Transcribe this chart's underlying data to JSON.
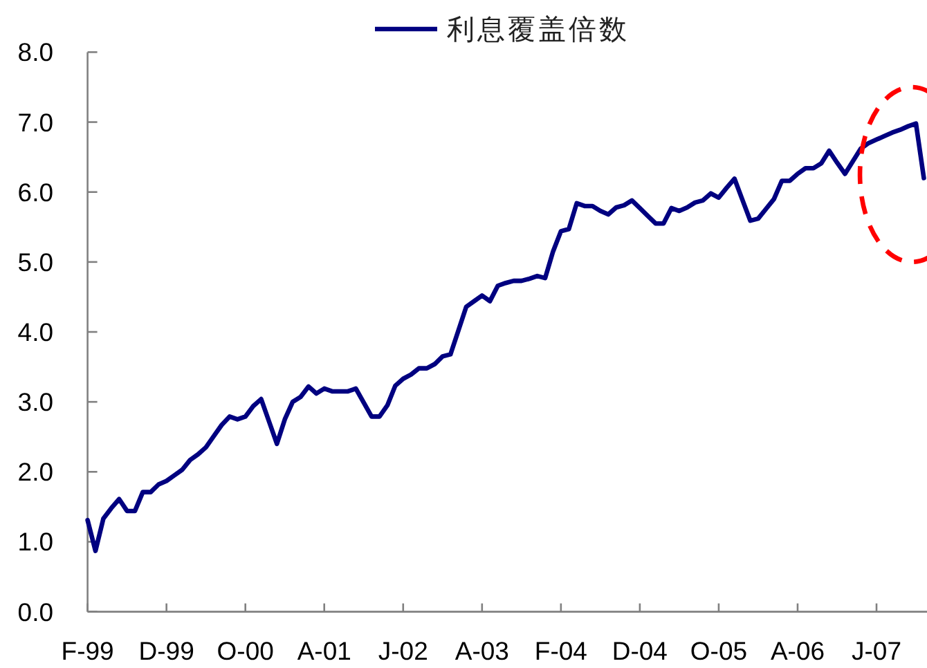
{
  "chart_data": {
    "type": "line",
    "categories": [
      "F-99",
      null,
      null,
      null,
      null,
      null,
      null,
      null,
      null,
      null,
      "D-99",
      null,
      null,
      null,
      null,
      null,
      null,
      null,
      null,
      null,
      "O-00",
      null,
      null,
      null,
      null,
      null,
      null,
      null,
      null,
      null,
      "A-01",
      null,
      null,
      null,
      null,
      null,
      null,
      null,
      null,
      null,
      "J-02",
      null,
      null,
      null,
      null,
      null,
      null,
      null,
      null,
      null,
      "A-03",
      null,
      null,
      null,
      null,
      null,
      null,
      null,
      null,
      null,
      "F-04",
      null,
      null,
      null,
      null,
      null,
      null,
      null,
      null,
      null,
      "D-04",
      null,
      null,
      null,
      null,
      null,
      null,
      null,
      null,
      null,
      "O-05",
      null,
      null,
      null,
      null,
      null,
      null,
      null,
      null,
      null,
      "A-06",
      null,
      null,
      null,
      null,
      null,
      null,
      null,
      null,
      null,
      "J-07",
      null,
      null,
      null,
      null,
      null,
      null
    ],
    "series": [
      {
        "name": "利息覆盖倍数",
        "color": "#000080",
        "values": [
          1.31,
          0.87,
          1.33,
          1.48,
          1.61,
          1.44,
          1.44,
          1.71,
          1.71,
          1.82,
          1.87,
          1.95,
          2.03,
          2.17,
          2.25,
          2.35,
          2.51,
          2.67,
          2.79,
          2.75,
          2.79,
          2.94,
          3.04,
          2.72,
          2.4,
          2.75,
          3.0,
          3.07,
          3.22,
          3.12,
          3.19,
          3.15,
          3.15,
          3.15,
          3.19,
          2.99,
          2.79,
          2.79,
          2.95,
          3.23,
          3.33,
          3.39,
          3.48,
          3.48,
          3.54,
          3.65,
          3.68,
          4.02,
          4.36,
          4.44,
          4.52,
          4.44,
          4.66,
          4.7,
          4.73,
          4.73,
          4.76,
          4.8,
          4.77,
          5.15,
          5.44,
          5.47,
          5.84,
          5.8,
          5.8,
          5.73,
          5.68,
          5.78,
          5.81,
          5.88,
          5.77,
          5.66,
          5.55,
          5.55,
          5.77,
          5.73,
          5.78,
          5.85,
          5.88,
          5.98,
          5.92,
          6.06,
          6.19,
          5.89,
          5.59,
          5.62,
          5.76,
          5.9,
          6.16,
          6.16,
          6.26,
          6.34,
          6.34,
          6.41,
          6.59,
          6.42,
          6.26,
          6.44,
          6.62,
          6.7,
          6.75,
          6.8,
          6.85,
          6.89,
          6.94,
          6.98,
          6.2
        ]
      }
    ],
    "ylim": [
      0,
      8
    ],
    "yticks": [
      {
        "value": 0,
        "label": "0.0"
      },
      {
        "value": 1,
        "label": "1.0"
      },
      {
        "value": 2,
        "label": "2.0"
      },
      {
        "value": 3,
        "label": "3.0"
      },
      {
        "value": 4,
        "label": "4.0"
      },
      {
        "value": 5,
        "label": "5.0"
      },
      {
        "value": 6,
        "label": "6.0"
      },
      {
        "value": 7,
        "label": "7.0"
      },
      {
        "value": 8,
        "label": "8.0"
      }
    ],
    "legend": "top"
  }
}
